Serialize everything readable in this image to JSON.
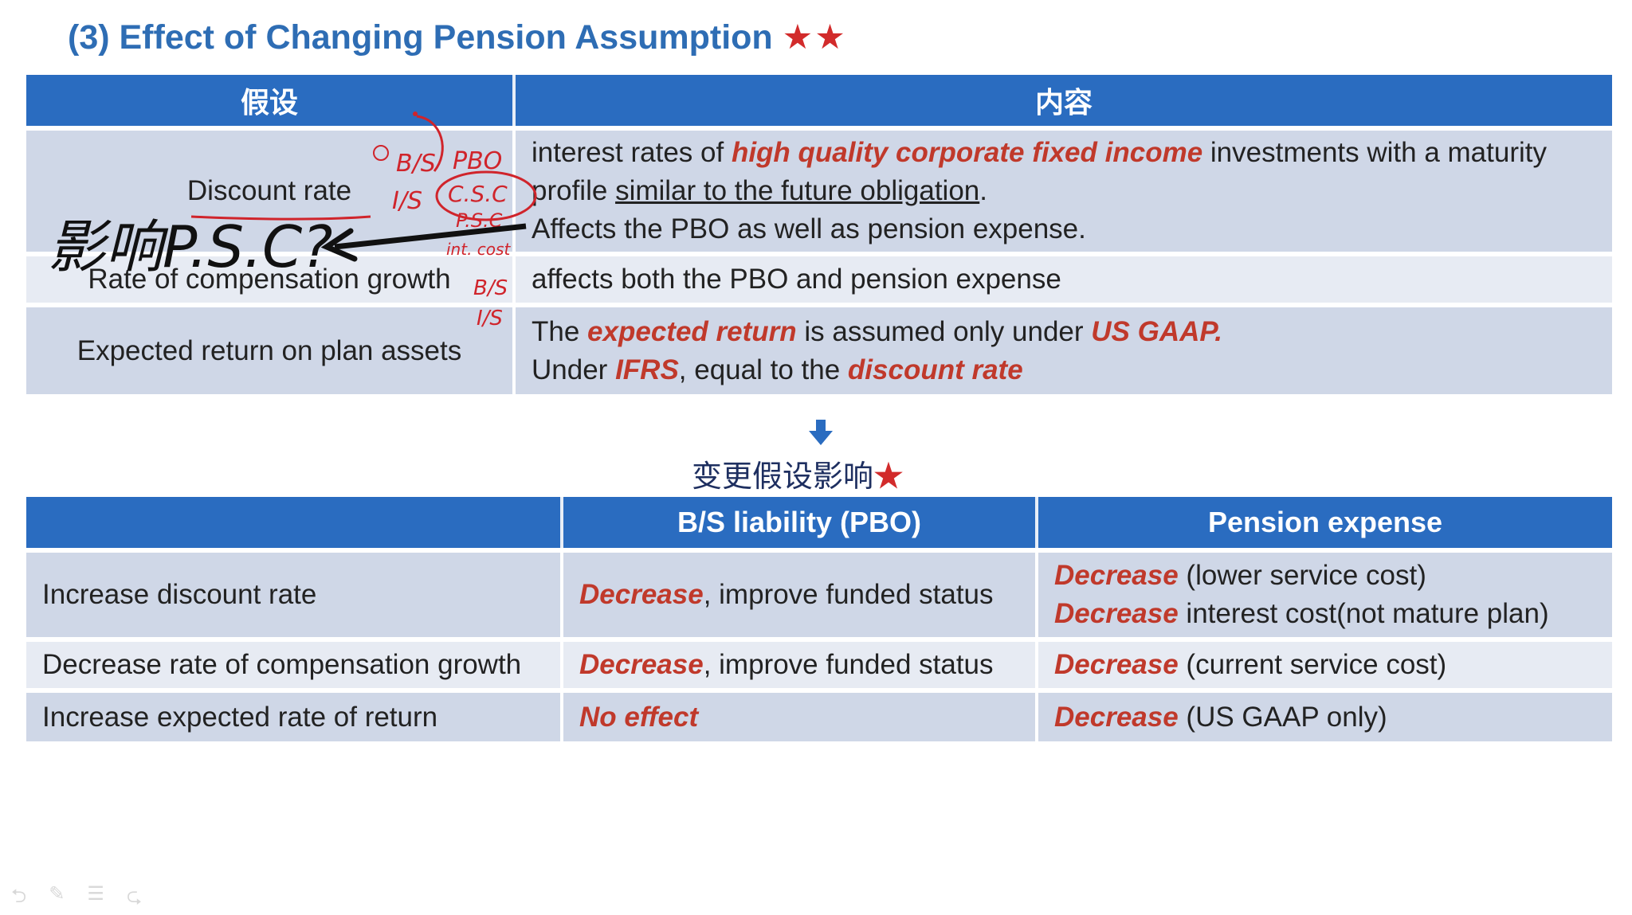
{
  "title": {
    "text": "(3) Effect of Changing Pension Assumption",
    "stars": "★★"
  },
  "table1": {
    "headers": [
      "假设",
      "内容"
    ],
    "rows": [
      {
        "label": "Discount rate",
        "lines": [
          [
            "interest rates of ",
            "high quality corporate fixed income",
            " investments with a maturity"
          ],
          [
            "profile ",
            "similar to the future obligation",
            "."
          ],
          [
            "Affects the PBO as well as pension expense."
          ]
        ]
      },
      {
        "label": "Rate of compensation growth",
        "text": "affects both the PBO and pension expense"
      },
      {
        "label": "Expected return on plan assets",
        "line1": [
          "The ",
          "expected return",
          " is assumed only under ",
          "US GAAP."
        ],
        "line2": [
          "Under ",
          "IFRS",
          ", equal to the ",
          "discount rate"
        ]
      }
    ]
  },
  "subtitle": {
    "text": "变更假设影响",
    "star": "★"
  },
  "table2": {
    "headers": [
      "",
      "B/S liability (PBO)",
      "Pension expense"
    ],
    "rows": [
      {
        "label": "Increase discount rate",
        "bs": [
          "Decrease",
          ", improve funded status"
        ],
        "exp": [
          [
            "Decrease",
            " (lower service cost)"
          ],
          [
            "Decrease",
            " interest cost(not mature plan)"
          ]
        ]
      },
      {
        "label": "Decrease rate of compensation growth",
        "bs": [
          "Decrease",
          ", improve funded status"
        ],
        "exp": [
          [
            "Decrease",
            " (current service cost)"
          ]
        ]
      },
      {
        "label": "Increase expected rate of return",
        "bs": [
          "No effect",
          ""
        ],
        "exp": [
          [
            "Decrease",
            " (US GAAP only)"
          ]
        ]
      }
    ]
  },
  "annotations": {
    "big_note": "影响P.S.C?",
    "bs": "B/S",
    "pbo": "PBO",
    "is": "I/S",
    "csc": "C.S.C",
    "psc": "P.S.C",
    "int_cost": "int. cost",
    "bs2": "B/S",
    "is2": "I/S"
  },
  "colors": {
    "header_blue": "#2a6cc0",
    "accent_red": "#c0392b",
    "title_blue": "#2e6db4",
    "ink_red": "#d0242b"
  }
}
